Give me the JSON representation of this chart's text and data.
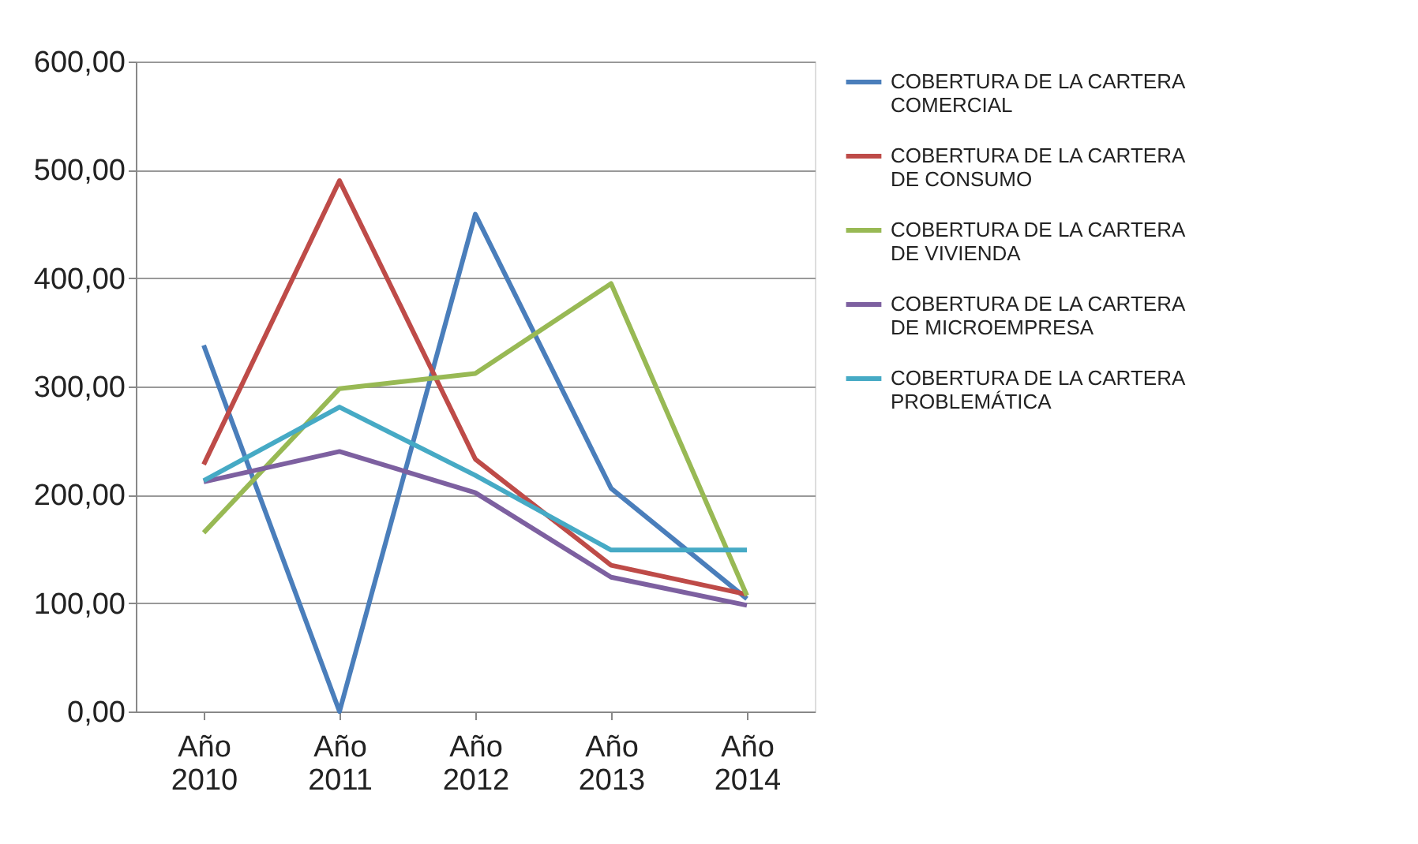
{
  "chart_data": {
    "type": "line",
    "categories": [
      "Año 2010",
      "Año 2011",
      "Año 2012",
      "Año 2013",
      "Año 2014"
    ],
    "series": [
      {
        "name": "COBERTURA DE LA CARTERA COMERCIAL",
        "color": "#4a7ebb",
        "values": [
          338,
          0,
          459,
          206,
          104
        ]
      },
      {
        "name": "COBERTURA DE LA CARTERA DE CONSUMO",
        "color": "#be4b48",
        "values": [
          228,
          490,
          233,
          135,
          108
        ]
      },
      {
        "name": "COBERTURA DE LA CARTERA DE VIVIENDA",
        "color": "#98b954",
        "values": [
          165,
          298,
          312,
          395,
          107
        ]
      },
      {
        "name": "COBERTURA DE LA CARTERA DE MICROEMPRESA",
        "color": "#7d60a0",
        "values": [
          212,
          240,
          202,
          124,
          98
        ]
      },
      {
        "name": "COBERTURA DE LA CARTERA PROBLEMÁTICA",
        "color": "#46aac5",
        "values": [
          213,
          281,
          218,
          149,
          149
        ]
      }
    ],
    "ylim": [
      0,
      600
    ],
    "yticks": [
      {
        "value": 0,
        "label": "0,00"
      },
      {
        "value": 100,
        "label": "100,00"
      },
      {
        "value": 200,
        "label": "200,00"
      },
      {
        "value": 300,
        "label": "300,00"
      },
      {
        "value": 400,
        "label": "400,00"
      },
      {
        "value": 500,
        "label": "500,00"
      },
      {
        "value": 600,
        "label": "600,00"
      }
    ],
    "grid": "y",
    "legend": "right",
    "marker": "none",
    "line_style": "solid"
  }
}
